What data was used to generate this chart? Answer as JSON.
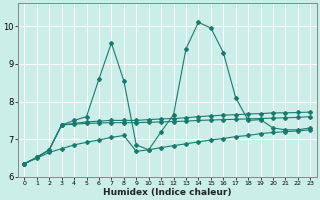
{
  "title": "",
  "xlabel": "Humidex (Indice chaleur)",
  "bg_color": "#cceee8",
  "grid_color": "#ffffff",
  "line_color": "#1a7a6e",
  "xlim": [
    -0.5,
    23.5
  ],
  "ylim": [
    6.0,
    10.6
  ],
  "yticks": [
    6,
    7,
    8,
    9,
    10
  ],
  "xticks": [
    0,
    1,
    2,
    3,
    4,
    5,
    6,
    7,
    8,
    9,
    10,
    11,
    12,
    13,
    14,
    15,
    16,
    17,
    18,
    19,
    20,
    21,
    22,
    23
  ],
  "series": [
    [
      6.35,
      6.5,
      6.65,
      6.75,
      6.85,
      6.92,
      6.98,
      7.05,
      7.1,
      6.68,
      6.72,
      6.78,
      6.83,
      6.88,
      6.93,
      6.98,
      7.02,
      7.07,
      7.1,
      7.15,
      7.18,
      7.2,
      7.22,
      7.25
    ],
    [
      6.35,
      6.52,
      6.72,
      7.38,
      7.4,
      7.42,
      7.43,
      7.44,
      7.44,
      7.44,
      7.45,
      7.46,
      7.47,
      7.48,
      7.5,
      7.51,
      7.52,
      7.53,
      7.54,
      7.55,
      7.56,
      7.57,
      7.58,
      7.6
    ],
    [
      6.35,
      6.52,
      6.72,
      7.38,
      7.42,
      7.46,
      7.48,
      7.5,
      7.5,
      7.5,
      7.52,
      7.54,
      7.55,
      7.57,
      7.6,
      7.62,
      7.64,
      7.65,
      7.67,
      7.68,
      7.7,
      7.7,
      7.71,
      7.72
    ],
    [
      6.35,
      6.52,
      6.72,
      7.38,
      7.5,
      7.6,
      8.6,
      9.55,
      8.55,
      6.85,
      6.72,
      7.2,
      7.65,
      9.4,
      10.1,
      9.95,
      9.3,
      8.1,
      7.5,
      7.52,
      7.3,
      7.25,
      7.25,
      7.3
    ]
  ]
}
